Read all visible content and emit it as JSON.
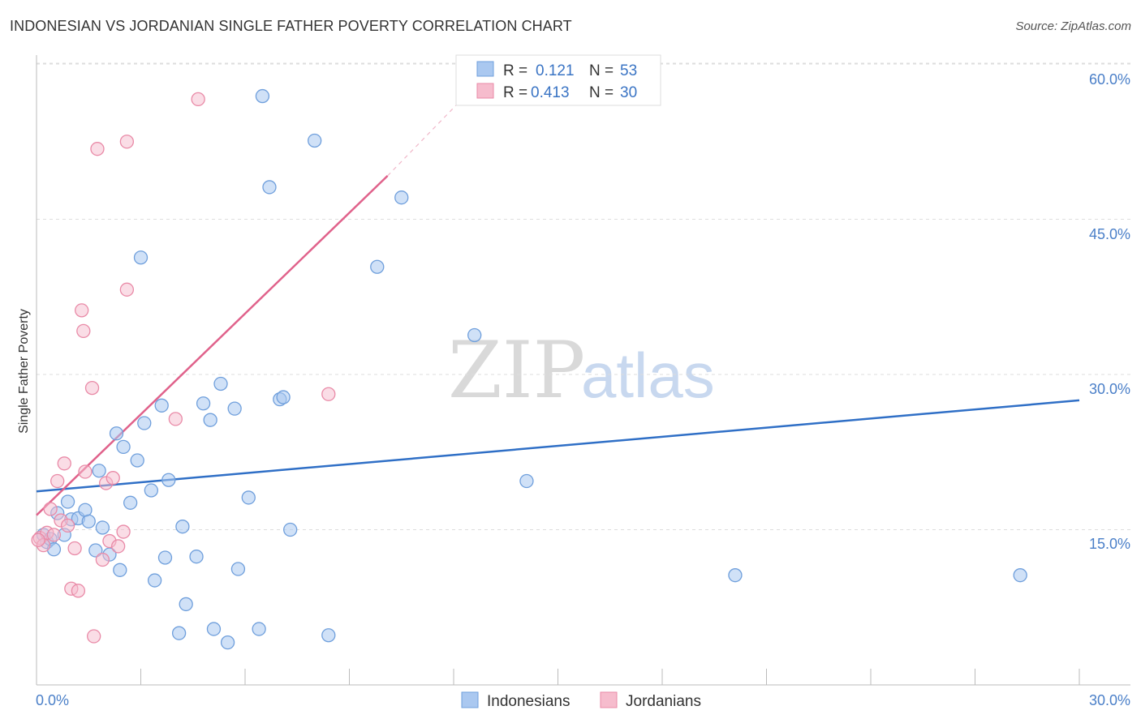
{
  "header": {
    "title": "INDONESIAN VS JORDANIAN SINGLE FATHER POVERTY CORRELATION CHART",
    "source": "Source: ZipAtlas.com"
  },
  "watermark": {
    "zip": "ZIP",
    "atlas": "atlas"
  },
  "colors": {
    "blue_fill": "#aac8f0",
    "blue_stroke": "#6f9fdc",
    "blue_line": "#2f6fc6",
    "pink_fill": "#f6bccd",
    "pink_stroke": "#e98aa7",
    "pink_line": "#e0628b",
    "grid": "#dddddd",
    "tick_text": "#4a7fc8"
  },
  "legend": {
    "rows": [
      {
        "r_label": "R =",
        "r_value": "0.121",
        "n_label": "N =",
        "n_value": "53"
      },
      {
        "r_label": "R =",
        "r_value": "0.413",
        "n_label": "N =",
        "n_value": "30"
      }
    ]
  },
  "bottom_legend": [
    "Indonesians",
    "Jordanians"
  ],
  "chart_data": {
    "type": "scatter",
    "title": "INDONESIAN VS JORDANIAN SINGLE FATHER POVERTY CORRELATION CHART",
    "xlabel": "",
    "ylabel": "Single Father Poverty",
    "xlim": [
      0,
      30
    ],
    "ylim": [
      0,
      63
    ],
    "x_tick_labels": [
      "0.0%",
      "30.0%"
    ],
    "y_ticks": [
      15,
      30,
      45,
      60
    ],
    "y_tick_labels": [
      "15.0%",
      "30.0%",
      "45.0%",
      "60.0%"
    ],
    "grid": true,
    "legend_position": "top-center",
    "series": [
      {
        "name": "Indonesians",
        "r": 0.121,
        "n": 53,
        "trend": {
          "x1": 0,
          "y1": 18.7,
          "x2": 30,
          "y2": 27.5
        },
        "points": [
          [
            0.2,
            14.5
          ],
          [
            0.3,
            13.8
          ],
          [
            0.4,
            14.1
          ],
          [
            0.5,
            13.1
          ],
          [
            0.6,
            16.6
          ],
          [
            0.8,
            14.5
          ],
          [
            0.9,
            17.7
          ],
          [
            1.0,
            16.0
          ],
          [
            1.2,
            16.1
          ],
          [
            1.4,
            16.9
          ],
          [
            1.5,
            15.8
          ],
          [
            1.7,
            13.0
          ],
          [
            1.8,
            20.7
          ],
          [
            1.9,
            15.2
          ],
          [
            2.1,
            12.6
          ],
          [
            2.3,
            24.3
          ],
          [
            2.4,
            11.1
          ],
          [
            2.5,
            23.0
          ],
          [
            2.7,
            17.6
          ],
          [
            2.9,
            21.7
          ],
          [
            3.0,
            41.3
          ],
          [
            3.1,
            25.3
          ],
          [
            3.3,
            18.8
          ],
          [
            3.4,
            10.1
          ],
          [
            3.6,
            27.0
          ],
          [
            3.7,
            12.3
          ],
          [
            3.8,
            19.8
          ],
          [
            4.1,
            5.0
          ],
          [
            4.2,
            15.3
          ],
          [
            4.3,
            7.8
          ],
          [
            4.6,
            12.4
          ],
          [
            4.8,
            27.2
          ],
          [
            5.0,
            25.6
          ],
          [
            5.1,
            5.4
          ],
          [
            5.3,
            29.1
          ],
          [
            5.5,
            4.1
          ],
          [
            5.7,
            26.7
          ],
          [
            5.8,
            11.2
          ],
          [
            6.1,
            18.1
          ],
          [
            6.4,
            5.4
          ],
          [
            6.5,
            56.9
          ],
          [
            6.7,
            48.1
          ],
          [
            7.0,
            27.6
          ],
          [
            7.1,
            27.8
          ],
          [
            7.3,
            15.0
          ],
          [
            8.0,
            52.6
          ],
          [
            8.4,
            4.8
          ],
          [
            9.8,
            40.4
          ],
          [
            10.5,
            47.1
          ],
          [
            12.6,
            33.8
          ],
          [
            14.1,
            19.7
          ],
          [
            20.1,
            10.6
          ],
          [
            28.3,
            10.6
          ]
        ]
      },
      {
        "name": "Jordanians",
        "r": 0.413,
        "n": 30,
        "trend": {
          "x1": 0,
          "y1": 16.4,
          "x2": 10.1,
          "y2": 49.2,
          "ext_x2": 12.5,
          "ext_y2": 57.5
        },
        "points": [
          [
            0.1,
            14.2
          ],
          [
            0.2,
            13.5
          ],
          [
            0.3,
            14.7
          ],
          [
            0.4,
            17.0
          ],
          [
            0.5,
            14.5
          ],
          [
            0.6,
            19.7
          ],
          [
            0.7,
            15.9
          ],
          [
            0.8,
            21.4
          ],
          [
            0.9,
            15.4
          ],
          [
            1.0,
            9.3
          ],
          [
            1.1,
            13.2
          ],
          [
            1.2,
            9.1
          ],
          [
            1.3,
            36.2
          ],
          [
            1.35,
            34.2
          ],
          [
            1.4,
            20.6
          ],
          [
            1.6,
            28.7
          ],
          [
            1.65,
            4.7
          ],
          [
            1.75,
            51.8
          ],
          [
            1.9,
            12.1
          ],
          [
            2.0,
            19.5
          ],
          [
            2.1,
            13.9
          ],
          [
            2.2,
            20.0
          ],
          [
            2.35,
            13.4
          ],
          [
            2.5,
            14.8
          ],
          [
            2.6,
            38.2
          ],
          [
            2.6,
            52.5
          ],
          [
            4.0,
            25.7
          ],
          [
            4.65,
            56.6
          ],
          [
            8.4,
            28.1
          ],
          [
            0.05,
            14.0
          ]
        ]
      }
    ]
  }
}
